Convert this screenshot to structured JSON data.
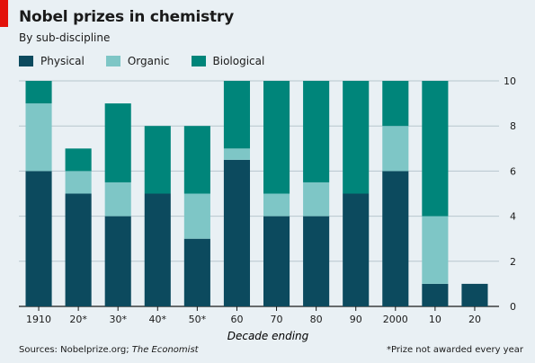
{
  "header": {
    "title": "Nobel prizes in chemistry",
    "subtitle": "By sub-discipline"
  },
  "colors": {
    "physical": "#0c4a5e",
    "organic": "#7ec6c6",
    "biological": "#00857a",
    "grid": "#b8c6cd",
    "background": "#e9f0f4",
    "accent": "#e3120b"
  },
  "footer": {
    "source_prefix": "Sources: Nobelprize.org; ",
    "source_italic": "The Economist",
    "footnote": "*Prize not awarded every year"
  },
  "chart_data": {
    "type": "bar",
    "stacked": true,
    "title": "Nobel prizes in chemistry",
    "subtitle": "By sub-discipline",
    "xlabel": "Decade ending",
    "ylabel": "",
    "ylim": [
      0,
      10
    ],
    "yticks": [
      0,
      2,
      4,
      6,
      8,
      10
    ],
    "y_axis_side": "right",
    "grid": true,
    "legend_position": "top-left",
    "categories": [
      "1910",
      "20*",
      "30*",
      "40*",
      "50*",
      "60",
      "70",
      "80",
      "90",
      "2000",
      "10",
      "20"
    ],
    "series": [
      {
        "name": "Physical",
        "values": [
          6,
          5,
          4,
          5,
          3,
          6.5,
          4,
          4,
          5,
          6,
          1,
          1
        ]
      },
      {
        "name": "Organic",
        "values": [
          3,
          1,
          1.5,
          0,
          2,
          0.5,
          1,
          1.5,
          0,
          2,
          3,
          0
        ]
      },
      {
        "name": "Biological",
        "values": [
          1,
          1,
          3.5,
          3,
          3,
          3,
          5,
          4.5,
          5,
          2,
          6,
          0
        ]
      }
    ]
  }
}
